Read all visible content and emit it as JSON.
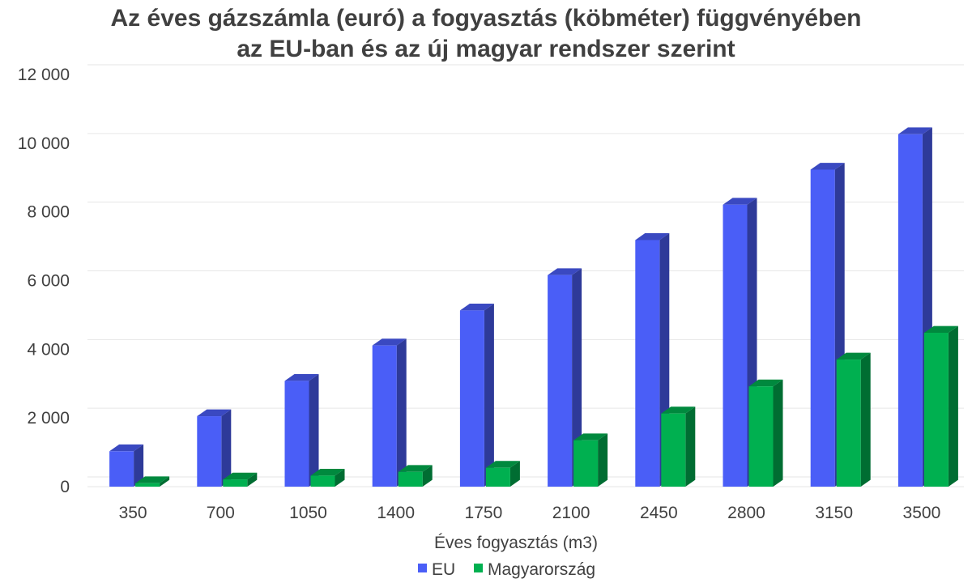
{
  "chart_data": {
    "type": "bar",
    "title_line1": "Az éves gázszámla (euró) a fogyasztás (köbméter) függvényében",
    "title_line2": "az EU-ban és az új magyar rendszer szerint",
    "xlabel": "Éves fogyasztás (m3)",
    "ylabel": "",
    "categories": [
      "350",
      "700",
      "1050",
      "1400",
      "1750",
      "2100",
      "2450",
      "2800",
      "3150",
      "3500"
    ],
    "ylim": [
      0,
      12000
    ],
    "y_ticks": [
      "0",
      "2 000",
      "4 000",
      "6 000",
      "8 000",
      "10 000",
      "12 000"
    ],
    "grid": true,
    "legend_position": "bottom",
    "series": [
      {
        "name": "EU",
        "color": "#4a5ef7",
        "values": [
          1030,
          2050,
          3080,
          4110,
          5130,
          6160,
          7180,
          8210,
          9230,
          10260
        ]
      },
      {
        "name": "Magyarország",
        "color": "#00b050",
        "values": [
          100,
          210,
          320,
          430,
          550,
          1350,
          2130,
          2920,
          3700,
          4480
        ]
      }
    ]
  }
}
